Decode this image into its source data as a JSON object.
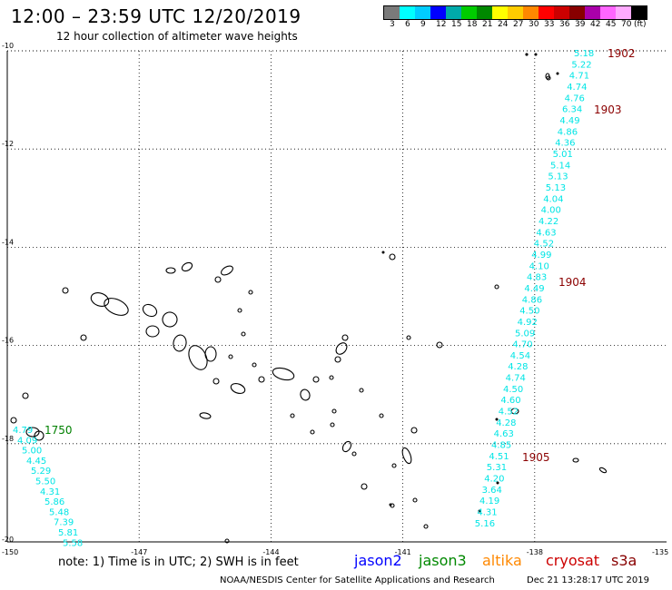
{
  "header": {
    "title": "12:00 – 23:59 UTC 12/20/2019",
    "subtitle": "12 hour collection of altimeter wave heights"
  },
  "scale": {
    "colors": [
      "#7a7a7a",
      "#00ffff",
      "#00ccff",
      "#0000ff",
      "#00aaaa",
      "#00cc00",
      "#008800",
      "#ffff00",
      "#ffcc00",
      "#ff8800",
      "#ff0000",
      "#cc0000",
      "#880000",
      "#aa00aa",
      "#ff66ff",
      "#ffaaff",
      "#000000"
    ],
    "labels": [
      "3",
      "6",
      "9",
      "12",
      "15",
      "18",
      "21",
      "24",
      "27",
      "30",
      "33",
      "36",
      "39",
      "42",
      "45",
      "70",
      "(ft)"
    ]
  },
  "axes": {
    "lat_labels": [
      "-10",
      "-12",
      "-14",
      "-16",
      "-18",
      "-20"
    ],
    "lon_labels": [
      "-150",
      "-147",
      "-144",
      "-141",
      "-138",
      "-135"
    ],
    "lat_range": [
      -20,
      -9.1
    ],
    "lon_range": [
      -150,
      -135
    ],
    "grid": "dotted"
  },
  "tracks": [
    {
      "color": "#00e5e5",
      "time_label": "1750",
      "time_color": "#008000",
      "values": [
        "4.79",
        "4.09",
        "5.00",
        "4.45",
        "5.29",
        "5.50",
        "4.31",
        "5.86",
        "5.48",
        "7.39",
        "5.81",
        "5.58"
      ]
    },
    {
      "color": "#00e5e5",
      "time_labels": [
        "1902",
        "1903",
        "1904",
        "1905"
      ],
      "time_color": "#8b0000",
      "values": [
        "5.18",
        "5.22",
        "4.71",
        "4.74",
        "4.76",
        "6.34",
        "4.49",
        "4.86",
        "4.36",
        "5.01",
        "5.14",
        "5.13",
        "5.13",
        "4.04",
        "4.00",
        "4.22",
        "4.63",
        "4.52",
        "4.99",
        "4.10",
        "4.83",
        "4.49",
        "4.86",
        "4.50",
        "4.92",
        "5.09",
        "4.70",
        "4.54",
        "4.28",
        "4.74",
        "4.50",
        "4.60",
        "4.52",
        "4.28",
        "4.63",
        "4.85",
        "4.51",
        "5.31",
        "4.20",
        "3.64",
        "4.19",
        "4.31",
        "5.16"
      ]
    }
  ],
  "footer": {
    "note": "note:  1) Time is in UTC;  2) SWH is in feet",
    "satellites": [
      {
        "name": "jason2",
        "color": "#0000ff"
      },
      {
        "name": "jason3",
        "color": "#008800"
      },
      {
        "name": "altika",
        "color": "#ff8800"
      },
      {
        "name": "cryosat",
        "color": "#cc0000"
      },
      {
        "name": "s3a",
        "color": "#880000"
      }
    ],
    "credit": "NOAA/NESDIS Center for Satellite Applications and Research",
    "timestamp": "Dec 21 13:28:17 UTC 2019"
  }
}
